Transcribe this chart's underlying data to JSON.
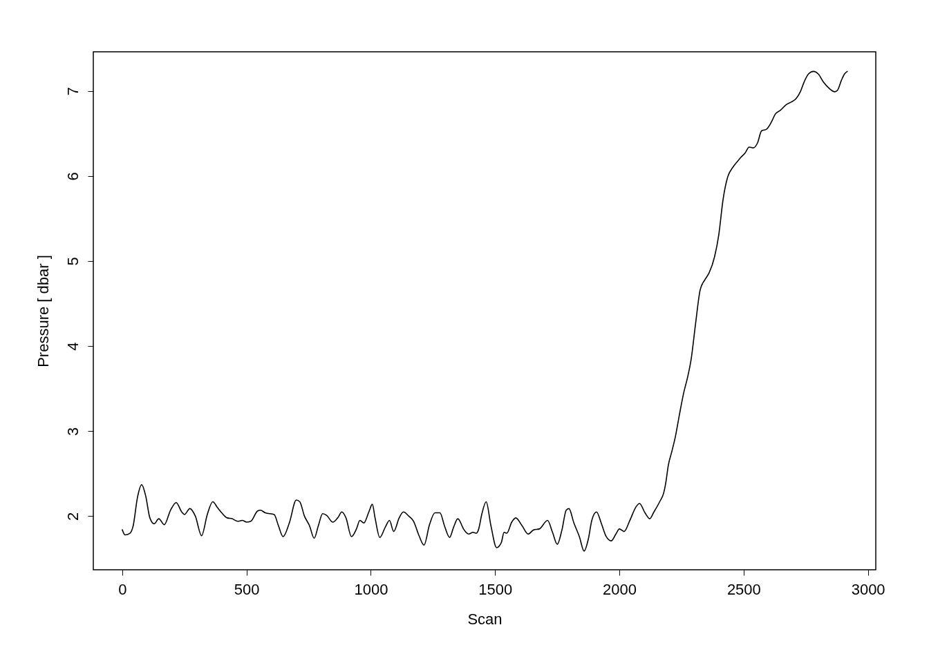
{
  "chart_data": {
    "type": "line",
    "xlabel": "Scan",
    "ylabel": "Pressure [ dbar ]",
    "x": [
      0,
      11,
      31,
      44,
      61,
      78,
      94,
      111,
      128,
      147,
      169,
      194,
      217,
      239,
      250,
      272,
      294,
      319,
      342,
      364,
      383,
      400,
      422,
      442,
      464,
      483,
      500,
      517,
      544,
      556,
      575,
      611,
      628,
      647,
      672,
      700,
      714,
      733,
      753,
      772,
      789,
      806,
      822,
      847,
      869,
      883,
      900,
      922,
      942,
      956,
      972,
      992,
      1006,
      1017,
      1036,
      1058,
      1075,
      1092,
      1114,
      1131,
      1153,
      1172,
      1194,
      1214,
      1236,
      1258,
      1278,
      1297,
      1317,
      1333,
      1350,
      1375,
      1394,
      1411,
      1425,
      1433,
      1447,
      1464,
      1483,
      1506,
      1525,
      1536,
      1547,
      1567,
      1583,
      1608,
      1633,
      1656,
      1678,
      1711,
      1731,
      1750,
      1769,
      1786,
      1797,
      1817,
      1839,
      1858,
      1875,
      1889,
      1908,
      1928,
      1947,
      1967,
      1986,
      2000,
      2019,
      2042,
      2067,
      2081,
      2103,
      2122,
      2139,
      2164,
      2178,
      2186,
      2197,
      2211,
      2225,
      2242,
      2258,
      2275,
      2289,
      2306,
      2325,
      2344,
      2361,
      2383,
      2400,
      2417,
      2436,
      2456,
      2472,
      2489,
      2506,
      2522,
      2539,
      2556,
      2572,
      2592,
      2611,
      2628,
      2647,
      2672,
      2692,
      2711,
      2728,
      2744,
      2761,
      2781,
      2800,
      2822,
      2844,
      2867,
      2878,
      2894,
      2906,
      2917
    ],
    "series": [
      {
        "color": "#000000",
        "values": [
          1.84,
          1.78,
          1.8,
          1.89,
          2.22,
          2.37,
          2.24,
          1.98,
          1.91,
          1.97,
          1.9,
          2.07,
          2.16,
          2.05,
          2.02,
          2.09,
          2.0,
          1.77,
          2.02,
          2.17,
          2.1,
          2.04,
          1.98,
          1.97,
          1.94,
          1.95,
          1.93,
          1.94,
          2.06,
          2.07,
          2.04,
          2.02,
          1.89,
          1.76,
          1.92,
          2.19,
          2.17,
          2.0,
          1.89,
          1.74,
          1.89,
          2.03,
          2.01,
          1.93,
          1.99,
          2.05,
          1.98,
          1.76,
          1.85,
          1.95,
          1.92,
          2.05,
          2.14,
          1.98,
          1.75,
          1.87,
          1.95,
          1.82,
          1.98,
          2.05,
          2.0,
          1.94,
          1.77,
          1.66,
          1.9,
          2.04,
          2.04,
          1.88,
          1.75,
          1.87,
          1.97,
          1.84,
          1.79,
          1.81,
          1.8,
          1.84,
          2.03,
          2.17,
          1.89,
          1.63,
          1.69,
          1.81,
          1.8,
          1.93,
          1.98,
          1.89,
          1.79,
          1.84,
          1.85,
          1.95,
          1.81,
          1.67,
          1.84,
          2.07,
          2.09,
          1.92,
          1.76,
          1.59,
          1.73,
          1.95,
          2.05,
          1.91,
          1.76,
          1.71,
          1.79,
          1.85,
          1.82,
          1.95,
          2.11,
          2.15,
          2.04,
          1.97,
          2.05,
          2.18,
          2.27,
          2.38,
          2.6,
          2.76,
          2.93,
          3.2,
          3.44,
          3.64,
          3.85,
          4.25,
          4.66,
          4.78,
          4.86,
          5.05,
          5.31,
          5.72,
          5.99,
          6.1,
          6.16,
          6.22,
          6.27,
          6.34,
          6.33,
          6.39,
          6.53,
          6.55,
          6.63,
          6.73,
          6.77,
          6.84,
          6.87,
          6.91,
          6.99,
          7.11,
          7.2,
          7.23,
          7.2,
          7.1,
          7.03,
          6.99,
          7.01,
          7.13,
          7.2,
          7.23
        ]
      }
    ],
    "xlim": [
      -116.6,
      3031.6
    ],
    "ylim": [
      1.37,
      7.46
    ],
    "xticks": [
      0,
      500,
      1000,
      1500,
      2000,
      2500,
      3000
    ],
    "yticks": [
      2,
      3,
      4,
      5,
      6,
      7
    ]
  }
}
